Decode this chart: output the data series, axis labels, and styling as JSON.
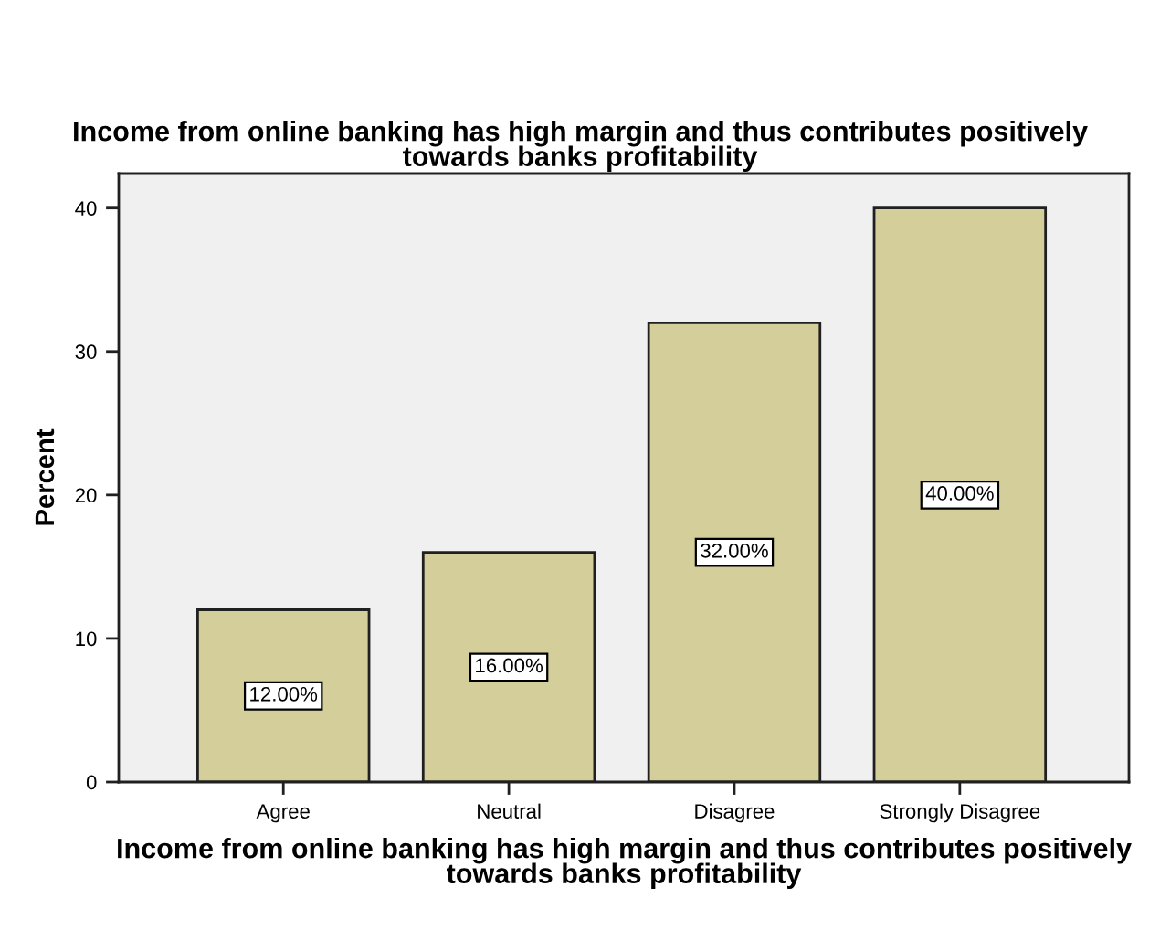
{
  "chart_data": {
    "type": "bar",
    "title": "Income from online banking has high margin and thus contributes positively\ntowards banks profitability",
    "xlabel": "Income from online banking has high margin and thus contributes positively\ntowards banks profitability",
    "ylabel": "Percent",
    "categories": [
      "Agree",
      "Neutral",
      "Disagree",
      "Strongly Disagree"
    ],
    "values": [
      12,
      16,
      32,
      40
    ],
    "value_labels": [
      "12.00%",
      "16.00%",
      "32.00%",
      "40.00%"
    ],
    "color": "#d3ce9a",
    "ylim": [
      0,
      42.4
    ],
    "yticks": [
      0,
      10,
      20,
      30,
      40
    ]
  }
}
